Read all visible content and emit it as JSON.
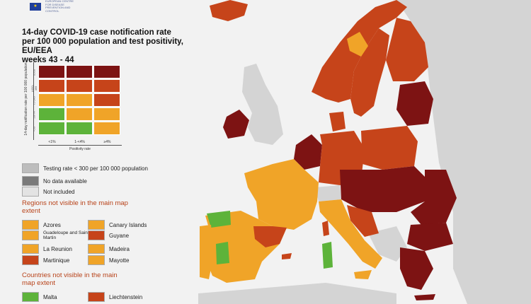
{
  "logo": {
    "text": "EUROPEAN CENTRE FOR DISEASE PREVENTION AND CONTROL"
  },
  "title": {
    "line1": "14-day COVID-19 case notification rate",
    "line2": "per 100 000 population and test positivity, EU/EEA",
    "line3": "weeks 43 - 44"
  },
  "colors": {
    "green": "#5db33a",
    "orange": "#f0a428",
    "red_orange": "#c6441a",
    "dark_red": "#7d1313",
    "grey_testing": "#bdbdbd",
    "grey_nodata": "#7a7a7a",
    "grey_notincluded": "#e3e3e3",
    "sea": "#f2f2f2",
    "non_eu": "#d3d3d3"
  },
  "matrix": {
    "y_axis_label": "14-day notification rate per 100 000 population",
    "y_ticks": [
      "≥500",
      "≥150-499",
      "75-149",
      "50-74",
      "<50"
    ],
    "x_ticks": [
      "<1%",
      "1-<4%",
      "≥4%"
    ],
    "x_axis_label": "Positivity rate",
    "rows": [
      [
        "dark_red",
        "dark_red",
        "dark_red"
      ],
      [
        "red_orange",
        "red_orange",
        "red_orange"
      ],
      [
        "orange",
        "orange",
        "red_orange"
      ],
      [
        "green",
        "orange",
        "orange"
      ],
      [
        "green",
        "green",
        "orange"
      ]
    ]
  },
  "legend_general": [
    {
      "label": "Testing rate < 300 per 100 000 population",
      "color": "grey_testing"
    },
    {
      "label": "No data available",
      "color": "grey_nodata"
    },
    {
      "label": "Not included",
      "color": "grey_notincluded"
    }
  ],
  "regions_heading": "Regions not visible in the main map extent",
  "regions": [
    {
      "label": "Azores",
      "color": "orange"
    },
    {
      "label": "Canary Islands",
      "color": "orange"
    },
    {
      "label": "Guadeloupe and Saint Martin",
      "color": "orange"
    },
    {
      "label": "Guyane",
      "color": "red_orange"
    },
    {
      "label": "La Reunion",
      "color": "orange"
    },
    {
      "label": "Madeira",
      "color": "orange"
    },
    {
      "label": "Martinique",
      "color": "red_orange"
    },
    {
      "label": "Mayotte",
      "color": "orange"
    }
  ],
  "countries_heading": "Countries not visible in the main map extent",
  "countries": [
    {
      "label": "Malta",
      "color": "green"
    },
    {
      "label": "Liechtenstein",
      "color": "red_orange"
    }
  ],
  "map_regions": [
    {
      "name": "Iceland",
      "color": "red_orange"
    },
    {
      "name": "Norway",
      "color": "red_orange"
    },
    {
      "name": "Sweden",
      "color": "red_orange"
    },
    {
      "name": "Finland",
      "color": "red_orange"
    },
    {
      "name": "Ireland",
      "color": "dark_red"
    },
    {
      "name": "Baltic states",
      "color": "dark_red"
    },
    {
      "name": "Denmark",
      "color": "red_orange"
    },
    {
      "name": "Netherlands/Belgium",
      "color": "dark_red"
    },
    {
      "name": "Germany",
      "color": "red_orange"
    },
    {
      "name": "Poland",
      "color": "red_orange"
    },
    {
      "name": "Central Europe",
      "color": "dark_red"
    },
    {
      "name": "France",
      "color": "orange"
    },
    {
      "name": "Spain",
      "color": "orange"
    },
    {
      "name": "Portugal",
      "color": "orange"
    },
    {
      "name": "Italy",
      "color": "orange"
    },
    {
      "name": "Romania",
      "color": "dark_red"
    },
    {
      "name": "Bulgaria",
      "color": "dark_red"
    },
    {
      "name": "Greece",
      "color": "dark_red"
    },
    {
      "name": "Sardinia",
      "color": "green"
    },
    {
      "name": "Galicia",
      "color": "green"
    }
  ]
}
